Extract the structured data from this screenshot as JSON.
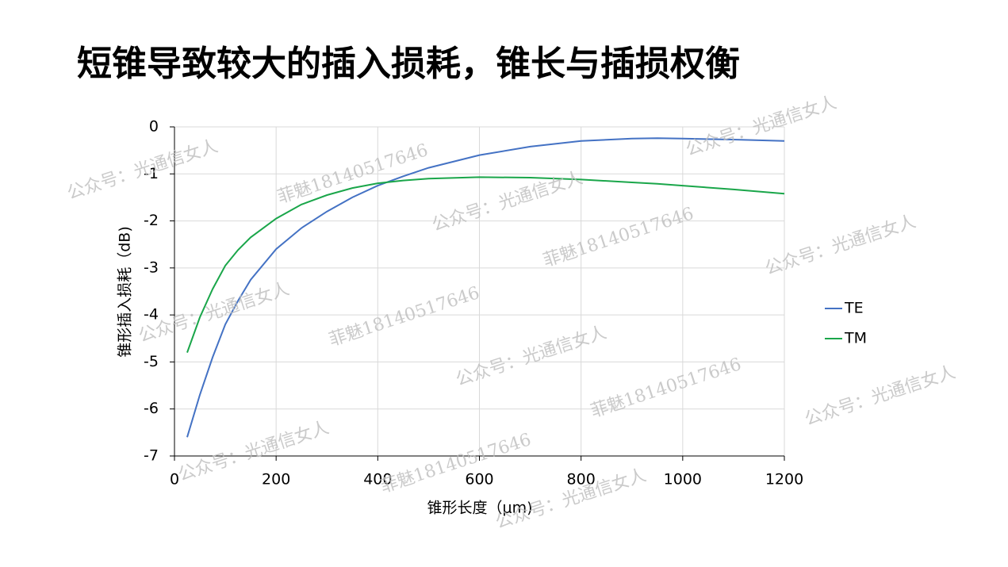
{
  "title": "短锥导致较大的插入损耗，锥长与插损权衡",
  "watermarks": [
    "公众号：光通信女人",
    "菲魅18140517646",
    "公众号：光通信女人",
    "菲魅18140517646",
    "公众号：光通信女人",
    "公众号：光通信女人",
    "菲魅18140517646",
    "公众号：光通信女人",
    "菲魅18140517646",
    "公众号：光通信女人",
    "公众号：光通信女人",
    "菲魅18140517646",
    "公众号：光通信女人",
    "公众号：光通信女人"
  ],
  "chart_data": {
    "type": "line",
    "x_label": "锥形长度（μm)",
    "y_label": "锥形插入损耗（dB)",
    "x": [
      25,
      50,
      75,
      100,
      125,
      150,
      200,
      250,
      300,
      350,
      400,
      450,
      500,
      600,
      700,
      800,
      900,
      950,
      1000,
      1100,
      1200
    ],
    "series": [
      {
        "name": "TE",
        "color": "#4472c4",
        "values": [
          -6.6,
          -5.7,
          -4.9,
          -4.2,
          -3.7,
          -3.25,
          -2.6,
          -2.15,
          -1.8,
          -1.5,
          -1.25,
          -1.05,
          -0.87,
          -0.6,
          -0.42,
          -0.3,
          -0.25,
          -0.24,
          -0.25,
          -0.27,
          -0.3
        ]
      },
      {
        "name": "TM",
        "color": "#1aa64a",
        "values": [
          -4.8,
          -4.05,
          -3.45,
          -2.95,
          -2.62,
          -2.35,
          -1.95,
          -1.65,
          -1.45,
          -1.3,
          -1.2,
          -1.14,
          -1.1,
          -1.07,
          -1.08,
          -1.12,
          -1.18,
          -1.21,
          -1.25,
          -1.33,
          -1.42
        ]
      }
    ],
    "xlim": [
      0,
      1200
    ],
    "xticks": [
      0,
      200,
      400,
      600,
      800,
      1000,
      1200
    ],
    "ylim": [
      -7,
      0
    ],
    "yticks": [
      0,
      -1,
      -2,
      -3,
      -4,
      -5,
      -6,
      -7
    ],
    "grid": true,
    "legend": "right"
  }
}
